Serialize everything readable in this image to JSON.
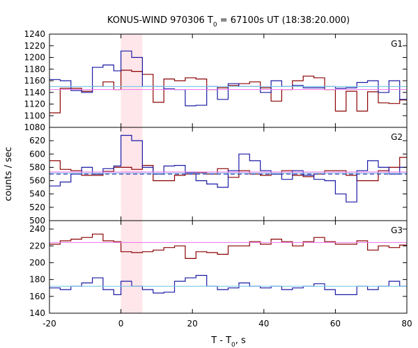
{
  "chart_data": {
    "type": "line",
    "title": {
      "prefix": "KONUS-WIND 970306 T",
      "sub": "0",
      "suffix": " = 67100s UT (18:38:20.000)"
    },
    "xlabel": {
      "prefix": "T - T",
      "sub": "0",
      "suffix": ", s"
    },
    "ylabel": "counts / sec",
    "xlim": [
      -20,
      80
    ],
    "xticks": [
      -20,
      0,
      20,
      40,
      60,
      80
    ],
    "highlight": {
      "x0": 0,
      "x1": 6,
      "color": "#ffe6ea"
    },
    "bin_x": [
      -20,
      -17,
      -14,
      -11,
      -8,
      -5,
      -2,
      0,
      3,
      6,
      9,
      12,
      15,
      18,
      21,
      24,
      27,
      30,
      33,
      36,
      39,
      42,
      45,
      48,
      51,
      54,
      57,
      60,
      63,
      66,
      69,
      72,
      75,
      78,
      80
    ],
    "colors": {
      "red": "#8b0000",
      "blue": "#1a1aa6",
      "pink": "#ee82ee",
      "cyan": "#7fc8e8"
    },
    "panels": [
      {
        "name": "G1",
        "ylim": [
          1080,
          1240
        ],
        "yticks": [
          1080,
          1100,
          1120,
          1140,
          1160,
          1180,
          1200,
          1220,
          1240
        ],
        "series": [
          {
            "color": "red",
            "values": [
              1105,
              1147,
              1147,
              1142,
              1150,
              1158,
              1145,
              1178,
              1176,
              1171,
              1123,
              1163,
              1160,
              1165,
              1163,
              1145,
              1148,
              1152,
              1155,
              1158,
              1148,
              1125,
              1145,
              1160,
              1168,
              1165,
              1145,
              1108,
              1142,
              1108,
              1141,
              1122,
              1121,
              1127
            ]
          },
          {
            "color": "blue",
            "values": [
              1162,
              1160,
              1143,
              1140,
              1183,
              1187,
              1177,
              1211,
              1200,
              1150,
              1150,
              1146,
              1145,
              1117,
              1118,
              1150,
              1128,
              1155,
              1150,
              1150,
              1140,
              1160,
              1150,
              1152,
              1148,
              1148,
              1150,
              1147,
              1148,
              1157,
              1160,
              1140,
              1160,
              1128
            ]
          },
          {
            "color": "pink",
            "level": 1145,
            "dash": false
          },
          {
            "color": "cyan",
            "level": 1150,
            "dash": false
          }
        ]
      },
      {
        "name": "G2",
        "ylim": [
          500,
          640
        ],
        "yticks": [
          500,
          520,
          540,
          560,
          580,
          600,
          620
        ],
        "series": [
          {
            "color": "red",
            "values": [
              590,
              577,
              575,
              568,
              568,
              574,
              580,
              580,
              577,
              583,
              560,
              560,
              568,
              570,
              572,
              570,
              578,
              565,
              575,
              570,
              568,
              570,
              575,
              568,
              566,
              570,
              575,
              575,
              568,
              560,
              560,
              575,
              580,
              595
            ]
          },
          {
            "color": "blue",
            "values": [
              552,
              558,
              570,
              580,
              570,
              578,
              582,
              628,
              620,
              580,
              570,
              582,
              583,
              572,
              560,
              555,
              550,
              575,
              600,
              590,
              575,
              570,
              562,
              575,
              568,
              562,
              560,
              540,
              528,
              575,
              590,
              580,
              570,
              580
            ]
          },
          {
            "color": "pink",
            "level": 573,
            "dash": false
          },
          {
            "color": "blue",
            "level": 570,
            "dash": true
          },
          {
            "color": "cyan",
            "level": 571,
            "dash": false
          }
        ]
      },
      {
        "name": "G3",
        "ylim": [
          140,
          250
        ],
        "yticks": [
          140,
          160,
          180,
          200,
          220,
          240
        ],
        "series": [
          {
            "color": "red",
            "values": [
              222,
              226,
              228,
              230,
              234,
              226,
              225,
              213,
              212,
              213,
              215,
              218,
              220,
              205,
              213,
              212,
              210,
              220,
              220,
              225,
              222,
              228,
              225,
              220,
              225,
              230,
              225,
              222,
              222,
              226,
              215,
              220,
              218,
              221
            ]
          },
          {
            "color": "blue",
            "values": [
              170,
              168,
              172,
              176,
              182,
              168,
              162,
              178,
              172,
              168,
              164,
              165,
              178,
              182,
              185,
              172,
              168,
              170,
              176,
              172,
              170,
              172,
              168,
              170,
              172,
              175,
              168,
              162,
              162,
              172,
              168,
              172,
              178,
              172
            ]
          },
          {
            "color": "pink",
            "level": 224,
            "dash": false
          },
          {
            "color": "cyan",
            "level": 172,
            "dash": false
          }
        ]
      }
    ]
  }
}
